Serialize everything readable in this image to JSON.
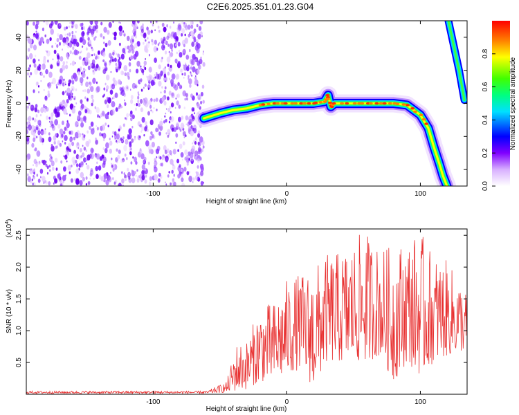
{
  "chart_data": [
    {
      "type": "heatmap",
      "title": "C2E6.2025.351.01.23.G04",
      "xlabel": "Height of straight line (km)",
      "ylabel": "Frequency (Hz)",
      "xlim": [
        -195,
        135
      ],
      "ylim": [
        -50,
        50
      ],
      "xticks": [
        -100,
        0,
        100
      ],
      "yticks": [
        -40,
        -20,
        0,
        20,
        40
      ],
      "colorbar": {
        "label": "Normalized spectral amplitude",
        "range": [
          0,
          1
        ],
        "ticks": [
          0.0,
          0.2,
          0.4,
          0.6,
          0.8
        ],
        "tick_labels": [
          "0.0",
          "0.2",
          "0.4",
          "0.6",
          "0.8"
        ],
        "colors": [
          "#ffffff",
          "#d8b0ff",
          "#8000ff",
          "#0000ff",
          "#00e0ff",
          "#00ff80",
          "#40ff00",
          "#ffff00",
          "#ff8000",
          "#ff0000"
        ]
      },
      "noise_region": {
        "x_from": -195,
        "x_to": -62,
        "description_free": true
      },
      "ridge": [
        {
          "x": -62,
          "y": -9
        },
        {
          "x": -50,
          "y": -6
        },
        {
          "x": -40,
          "y": -4
        },
        {
          "x": -30,
          "y": -3
        },
        {
          "x": -20,
          "y": -1
        },
        {
          "x": -10,
          "y": 0
        },
        {
          "x": 0,
          "y": 0
        },
        {
          "x": 10,
          "y": 0
        },
        {
          "x": 20,
          "y": 0
        },
        {
          "x": 28,
          "y": 1
        },
        {
          "x": 31,
          "y": 5
        },
        {
          "x": 33,
          "y": -2
        },
        {
          "x": 36,
          "y": 0
        },
        {
          "x": 50,
          "y": 0
        },
        {
          "x": 60,
          "y": 0
        },
        {
          "x": 70,
          "y": 0
        },
        {
          "x": 80,
          "y": 0
        },
        {
          "x": 90,
          "y": -1
        },
        {
          "x": 100,
          "y": -7
        },
        {
          "x": 106,
          "y": -15
        },
        {
          "x": 110,
          "y": -26
        },
        {
          "x": 114,
          "y": -36
        },
        {
          "x": 117,
          "y": -44
        },
        {
          "x": 120,
          "y": -50
        }
      ],
      "alias_ridge": [
        {
          "x": 121,
          "y": 50
        },
        {
          "x": 125,
          "y": 35
        },
        {
          "x": 129,
          "y": 20
        },
        {
          "x": 133,
          "y": 2
        }
      ]
    },
    {
      "type": "line",
      "xlabel": "Height of straight line (km)",
      "ylabel": "SNR (10 * v/v)",
      "y_multiplier_label": "(x10",
      "y_multiplier_exp": "4",
      "y_multiplier_close": ")",
      "xlim": [
        -195,
        135
      ],
      "ylim": [
        0,
        26000
      ],
      "xticks": [
        -100,
        0,
        100
      ],
      "yticks": [
        5000,
        10000,
        15000,
        20000,
        25000
      ],
      "ytick_labels": [
        "0.5",
        "1.0",
        "1.5",
        "2.0",
        "2.5"
      ],
      "color": "#e83030",
      "series": [
        {
          "name": "SNR",
          "envelope": [
            {
              "x": -195,
              "low": 100,
              "high": 500
            },
            {
              "x": -60,
              "low": 100,
              "high": 500
            },
            {
              "x": -45,
              "low": 300,
              "high": 2000
            },
            {
              "x": -38,
              "low": 500,
              "high": 8000
            },
            {
              "x": -30,
              "low": 800,
              "high": 8500
            },
            {
              "x": -20,
              "low": 2000,
              "high": 14000
            },
            {
              "x": -10,
              "low": 2000,
              "high": 14500
            },
            {
              "x": 0,
              "low": 3000,
              "high": 18000
            },
            {
              "x": 10,
              "low": 4000,
              "high": 19000
            },
            {
              "x": 20,
              "low": 1000,
              "high": 20000
            },
            {
              "x": 30,
              "low": 5000,
              "high": 22000
            },
            {
              "x": 40,
              "low": 5000,
              "high": 22500
            },
            {
              "x": 50,
              "low": 5000,
              "high": 24000
            },
            {
              "x": 58,
              "low": 5000,
              "high": 26000
            },
            {
              "x": 70,
              "low": 6000,
              "high": 23000
            },
            {
              "x": 80,
              "low": 2000,
              "high": 23500
            },
            {
              "x": 90,
              "low": 5000,
              "high": 24500
            },
            {
              "x": 100,
              "low": 3000,
              "high": 25500
            },
            {
              "x": 110,
              "low": 5000,
              "high": 22000
            },
            {
              "x": 120,
              "low": 6000,
              "high": 21000
            },
            {
              "x": 135,
              "low": 7000,
              "high": 16000
            }
          ]
        }
      ]
    }
  ]
}
